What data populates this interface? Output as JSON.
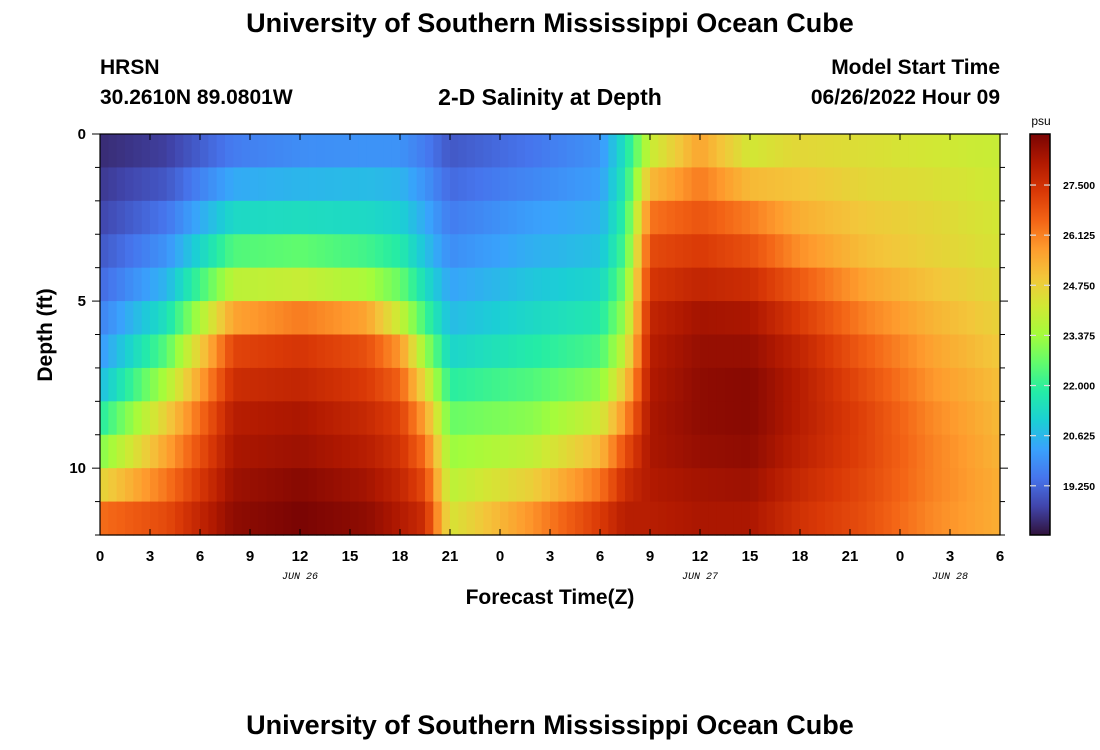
{
  "page": {
    "title": "University of Southern Mississippi Ocean Cube",
    "footer_title": "University of Southern Mississippi Ocean Cube",
    "station": "HRSN",
    "coordinates": "30.2610N  89.0801W",
    "plot_title": "2-D Salinity at Depth",
    "model_start_label": "Model Start Time",
    "model_start_value": "06/26/2022 Hour 09"
  },
  "chart_data": {
    "type": "heatmap",
    "title": "2-D Salinity at Depth",
    "xlabel": "Forecast Time(Z)",
    "ylabel": "Depth (ft)",
    "x_ticks": [
      "0",
      "3",
      "6",
      "9",
      "12",
      "15",
      "18",
      "21",
      "0",
      "3",
      "6",
      "9",
      "12",
      "15",
      "18",
      "21",
      "0",
      "3",
      "6"
    ],
    "x_hours": [
      0,
      54
    ],
    "date_labels": [
      {
        "label": "JUN 26",
        "hour": 12
      },
      {
        "label": "JUN 27",
        "hour": 36
      },
      {
        "label": "JUN 28",
        "hour": 51
      }
    ],
    "y_ticks": [
      "0",
      "5",
      "10"
    ],
    "ylim": [
      0,
      12
    ],
    "depth_levels_ft": [
      0.5,
      1.5,
      2.5,
      3.5,
      4.5,
      5.5,
      6.5,
      7.5,
      8.5,
      9.5,
      10.5,
      11.5
    ],
    "colorbar": {
      "unit": "psu",
      "tick_labels": [
        "27.500",
        "26.125",
        "24.750",
        "23.375",
        "22.000",
        "20.625",
        "19.250"
      ],
      "range": [
        17.9,
        28.9
      ],
      "colors": [
        "#30123b",
        "#4145ab",
        "#4675ed",
        "#39a2fc",
        "#1bcfd4",
        "#24eca6",
        "#61fc6c",
        "#a4fc3b",
        "#d1e834",
        "#f3c63a",
        "#fe9b2d",
        "#f36315",
        "#d93806",
        "#b11901",
        "#7a0403"
      ]
    },
    "columns": [
      {
        "hour": 0,
        "values": [
          18.3,
          18.5,
          18.7,
          19.0,
          19.3,
          19.7,
          20.1,
          20.7,
          21.8,
          23.0,
          24.6,
          26.4
        ]
      },
      {
        "hour": 4,
        "values": [
          18.6,
          19.0,
          19.5,
          20.0,
          20.6,
          21.5,
          22.5,
          23.6,
          24.8,
          25.6,
          26.3,
          27.0
        ]
      },
      {
        "hour": 8,
        "values": [
          19.6,
          20.4,
          21.3,
          22.4,
          23.8,
          25.6,
          27.1,
          27.6,
          28.0,
          28.2,
          28.4,
          28.6
        ]
      },
      {
        "hour": 12,
        "values": [
          19.9,
          20.6,
          21.4,
          22.6,
          24.0,
          26.2,
          27.4,
          27.8,
          28.2,
          28.4,
          28.7,
          28.9
        ]
      },
      {
        "hour": 16,
        "values": [
          20.0,
          20.7,
          21.3,
          22.2,
          23.5,
          25.6,
          26.9,
          27.3,
          27.7,
          28.0,
          28.3,
          28.6
        ]
      },
      {
        "hour": 18,
        "values": [
          20.0,
          20.6,
          21.1,
          21.8,
          22.7,
          24.0,
          25.8,
          26.6,
          27.2,
          27.5,
          27.8,
          28.1
        ]
      },
      {
        "hour": 19.5,
        "values": [
          19.6,
          20.0,
          20.4,
          20.8,
          21.4,
          22.2,
          23.3,
          24.5,
          25.6,
          26.4,
          27.0,
          27.6
        ]
      },
      {
        "hour": 21,
        "values": [
          19.0,
          19.3,
          19.6,
          19.9,
          20.3,
          20.7,
          21.2,
          21.9,
          22.7,
          23.3,
          23.8,
          24.3
        ]
      },
      {
        "hour": 26,
        "values": [
          19.5,
          19.8,
          20.2,
          20.5,
          20.9,
          21.3,
          21.8,
          22.4,
          23.1,
          23.9,
          24.8,
          25.9
        ]
      },
      {
        "hour": 30,
        "values": [
          20.0,
          20.2,
          20.5,
          20.8,
          21.2,
          21.7,
          22.3,
          23.1,
          24.1,
          25.2,
          26.3,
          27.3
        ]
      },
      {
        "hour": 31.5,
        "values": [
          21.5,
          21.7,
          22.0,
          22.3,
          22.8,
          23.3,
          24.0,
          24.9,
          25.9,
          26.9,
          27.6,
          28.0
        ]
      },
      {
        "hour": 33,
        "values": [
          24.0,
          25.2,
          26.3,
          27.0,
          27.4,
          27.8,
          28.0,
          28.1,
          28.2,
          28.2,
          28.1,
          28.0
        ]
      },
      {
        "hour": 36,
        "values": [
          25.6,
          26.2,
          26.8,
          27.3,
          27.8,
          28.3,
          28.5,
          28.6,
          28.6,
          28.5,
          28.3,
          28.2
        ]
      },
      {
        "hour": 39,
        "values": [
          24.2,
          25.2,
          26.2,
          26.9,
          27.6,
          28.2,
          28.5,
          28.7,
          28.7,
          28.6,
          28.4,
          28.2
        ]
      },
      {
        "hour": 42,
        "values": [
          24.6,
          25.0,
          25.4,
          25.9,
          26.7,
          27.3,
          27.8,
          28.0,
          28.0,
          27.9,
          27.7,
          27.5
        ]
      },
      {
        "hour": 46,
        "values": [
          24.4,
          24.6,
          24.9,
          25.1,
          25.6,
          26.1,
          26.6,
          26.9,
          27.1,
          27.1,
          27.0,
          26.9
        ]
      },
      {
        "hour": 50,
        "values": [
          24.2,
          24.4,
          24.6,
          24.7,
          25.0,
          25.3,
          25.6,
          25.8,
          26.0,
          26.1,
          26.1,
          26.0
        ]
      },
      {
        "hour": 54,
        "values": [
          24.0,
          24.1,
          24.2,
          24.3,
          24.5,
          24.7,
          24.9,
          25.1,
          25.2,
          25.3,
          25.4,
          25.4
        ]
      }
    ]
  }
}
